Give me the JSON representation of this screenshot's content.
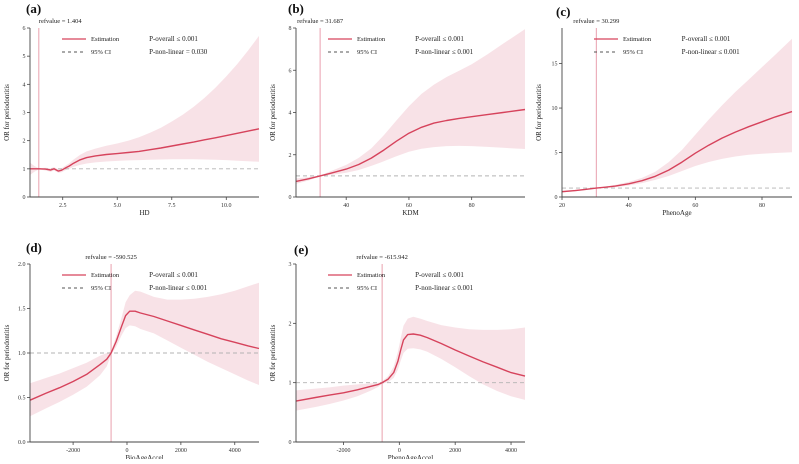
{
  "figure": {
    "background": "#ffffff",
    "colors": {
      "accent": "#d6435c",
      "band": "#f7dde3",
      "refline": "#e9a0ae",
      "dashline": "#b3b3b3",
      "axis": "#444444",
      "text": "#1a1a1a",
      "legend_dash": "#555555"
    },
    "legend": {
      "estimation_label": "Estimation",
      "ci_label": "95% CI"
    }
  },
  "chart_data": [
    {
      "type": "line",
      "panel_label": "(a)",
      "ref_label": "refvalue = 1.404",
      "refvalue": 1.404,
      "xlabel": "HD",
      "ylabel": "OR for periodontitis",
      "p_overall": "P-overall ≤ 0.001",
      "p_nonlinear": "P-non-linear = 0.030",
      "legend": [
        "Estimation",
        "95% CI"
      ],
      "legend_position": "top-left",
      "grid": false,
      "xlim": [
        1.0,
        11.5
      ],
      "ylim": [
        0,
        6
      ],
      "xticks": {
        "values": [
          2.5,
          5.0,
          7.5,
          10.0
        ],
        "labels": [
          "2.5",
          "5.0",
          "7.5",
          "10.0"
        ]
      },
      "yticks": {
        "values": [
          0,
          1,
          2,
          3,
          4,
          5,
          6
        ],
        "labels": [
          "0",
          "1",
          "2",
          "3",
          "4",
          "5",
          "6"
        ]
      },
      "x": [
        1.0,
        1.2,
        1.404,
        1.7,
        1.95,
        2.1,
        2.3,
        2.45,
        2.6,
        2.8,
        3.0,
        3.3,
        3.6,
        4.0,
        4.5,
        5.0,
        5.5,
        6.0,
        6.5,
        7.0,
        7.5,
        8.0,
        8.5,
        9.0,
        9.5,
        10.0,
        10.5,
        11.0,
        11.5
      ],
      "estimate": [
        1.0,
        1.0,
        1.0,
        0.99,
        0.96,
        1.0,
        0.92,
        0.95,
        1.02,
        1.1,
        1.2,
        1.32,
        1.4,
        1.46,
        1.51,
        1.54,
        1.58,
        1.62,
        1.68,
        1.74,
        1.81,
        1.88,
        1.95,
        2.03,
        2.1,
        2.18,
        2.26,
        2.34,
        2.42
      ],
      "ci_upper": [
        1.22,
        1.1,
        1.02,
        1.04,
        1.02,
        1.06,
        0.98,
        1.02,
        1.1,
        1.2,
        1.33,
        1.5,
        1.62,
        1.72,
        1.82,
        1.9,
        2.0,
        2.12,
        2.28,
        2.46,
        2.68,
        2.92,
        3.2,
        3.52,
        3.88,
        4.28,
        4.72,
        5.2,
        5.72
      ],
      "ci_lower": [
        0.78,
        0.9,
        0.98,
        0.94,
        0.9,
        0.94,
        0.86,
        0.88,
        0.94,
        1.0,
        1.07,
        1.14,
        1.19,
        1.23,
        1.26,
        1.28,
        1.3,
        1.31,
        1.32,
        1.33,
        1.34,
        1.34,
        1.34,
        1.33,
        1.32,
        1.31,
        1.29,
        1.27,
        1.25
      ]
    },
    {
      "type": "line",
      "panel_label": "(b)",
      "ref_label": "refvalue = 31.687",
      "refvalue": 31.687,
      "xlabel": "KDM",
      "ylabel": "OR for periodontitis",
      "p_overall": "P-overall ≤ 0.001",
      "p_nonlinear": "P-non-linear ≤ 0.001",
      "legend": [
        "Estimation",
        "95% CI"
      ],
      "legend_position": "top-left",
      "grid": false,
      "xlim": [
        24,
        97
      ],
      "ylim": [
        0,
        8
      ],
      "xticks": {
        "values": [
          40,
          60,
          80
        ],
        "labels": [
          "40",
          "60",
          "80"
        ]
      },
      "yticks": {
        "values": [
          0,
          2,
          4,
          6,
          8
        ],
        "labels": [
          "0",
          "2",
          "4",
          "6",
          "8"
        ]
      },
      "x": [
        24,
        28,
        31.687,
        35,
        40,
        44,
        48,
        52,
        56,
        60,
        64,
        68,
        72,
        76,
        80,
        85,
        90,
        97
      ],
      "estimate": [
        0.74,
        0.86,
        1.0,
        1.12,
        1.32,
        1.54,
        1.84,
        2.22,
        2.64,
        3.02,
        3.3,
        3.5,
        3.62,
        3.72,
        3.8,
        3.9,
        4.0,
        4.14
      ],
      "ci_upper": [
        0.88,
        0.94,
        1.02,
        1.22,
        1.52,
        1.85,
        2.3,
        2.92,
        3.62,
        4.3,
        4.88,
        5.32,
        5.68,
        5.98,
        6.28,
        6.75,
        7.25,
        7.95
      ],
      "ci_lower": [
        0.62,
        0.78,
        0.98,
        1.04,
        1.15,
        1.28,
        1.47,
        1.69,
        1.93,
        2.14,
        2.28,
        2.36,
        2.41,
        2.42,
        2.41,
        2.37,
        2.33,
        2.27
      ]
    },
    {
      "type": "line",
      "panel_label": "(c)",
      "ref_label": "refvalue = 30.299",
      "refvalue": 30.299,
      "xlabel": "PhenoAge",
      "ylabel": "OR for periodontitis",
      "p_overall": "P-overall ≤ 0.001",
      "p_nonlinear": "P-non-linear ≤ 0.001",
      "legend": [
        "Estimation",
        "95% CI"
      ],
      "legend_position": "top-left",
      "grid": false,
      "xlim": [
        20,
        89
      ],
      "ylim": [
        0,
        19
      ],
      "xticks": {
        "values": [
          20,
          40,
          60,
          80
        ],
        "labels": [
          "20",
          "40",
          "60",
          "80"
        ]
      },
      "yticks": {
        "values": [
          0,
          5,
          10,
          15
        ],
        "labels": [
          "0",
          "5",
          "10",
          "15"
        ]
      },
      "x": [
        20,
        24,
        27,
        30.299,
        33,
        36,
        40,
        44,
        48,
        52,
        56,
        60,
        64,
        68,
        72,
        76,
        80,
        84,
        89
      ],
      "estimate": [
        0.6,
        0.72,
        0.85,
        1.0,
        1.1,
        1.22,
        1.48,
        1.83,
        2.33,
        3.02,
        3.92,
        4.92,
        5.82,
        6.62,
        7.3,
        7.9,
        8.45,
        9.0,
        9.6
      ],
      "ci_upper": [
        0.72,
        0.8,
        0.9,
        1.03,
        1.17,
        1.36,
        1.7,
        2.15,
        2.85,
        3.92,
        5.3,
        7.0,
        8.7,
        10.3,
        11.8,
        13.2,
        14.6,
        16.0,
        17.8
      ],
      "ci_lower": [
        0.5,
        0.64,
        0.8,
        0.97,
        1.03,
        1.1,
        1.29,
        1.56,
        1.92,
        2.36,
        2.92,
        3.48,
        3.94,
        4.28,
        4.55,
        4.74,
        4.87,
        4.95,
        5.02
      ]
    },
    {
      "type": "line",
      "panel_label": "(d)",
      "ref_label": "refvalue = -590.525",
      "refvalue": -590.525,
      "xlabel": "BioAgeAccel",
      "ylabel": "OR for periodontitis",
      "p_overall": "P-overall ≤ 0.001",
      "p_nonlinear": "P-non-linear ≤ 0.001",
      "legend": [
        "Estimation",
        "95% CI"
      ],
      "legend_position": "top-left",
      "grid": false,
      "xlim": [
        -3600,
        4900
      ],
      "ylim": [
        0,
        2
      ],
      "xticks": {
        "values": [
          -2000,
          0,
          2000,
          4000
        ],
        "labels": [
          "-2000",
          "0",
          "2000",
          "4000"
        ]
      },
      "yticks": {
        "values": [
          0,
          0.5,
          1.0,
          1.5,
          2.0
        ],
        "labels": [
          "0.0",
          "0.5",
          "1.0",
          "1.5",
          "2.0"
        ]
      },
      "x": [
        -3600,
        -3000,
        -2500,
        -2000,
        -1500,
        -1000,
        -750,
        -590.525,
        -400,
        -200,
        -50,
        100,
        300,
        500,
        1000,
        1500,
        2000,
        2500,
        3000,
        3500,
        4000,
        4500,
        4900
      ],
      "estimate": [
        0.47,
        0.55,
        0.61,
        0.68,
        0.76,
        0.87,
        0.93,
        1.0,
        1.13,
        1.3,
        1.42,
        1.47,
        1.47,
        1.45,
        1.41,
        1.36,
        1.31,
        1.26,
        1.21,
        1.16,
        1.12,
        1.08,
        1.05
      ],
      "ci_upper": [
        0.66,
        0.72,
        0.77,
        0.83,
        0.89,
        0.97,
        1.0,
        1.02,
        1.19,
        1.4,
        1.57,
        1.65,
        1.7,
        1.69,
        1.63,
        1.6,
        1.6,
        1.61,
        1.63,
        1.66,
        1.7,
        1.75,
        1.79
      ],
      "ci_lower": [
        0.29,
        0.38,
        0.45,
        0.53,
        0.62,
        0.75,
        0.85,
        0.98,
        1.07,
        1.2,
        1.28,
        1.31,
        1.3,
        1.27,
        1.22,
        1.14,
        1.06,
        0.98,
        0.9,
        0.83,
        0.76,
        0.69,
        0.64
      ]
    },
    {
      "type": "line",
      "panel_label": "(e)",
      "ref_label": "refvalue = -615.942",
      "refvalue": -615.942,
      "xlabel": "PhenoAgeAccel",
      "ylabel": "OR for periodontitis",
      "p_overall": "P-overall ≤  0.001",
      "p_nonlinear": "P-non-linear ≤ 0.001",
      "legend": [
        "Estimation",
        "95% CI"
      ],
      "legend_position": "top-left",
      "grid": false,
      "xlim": [
        -3700,
        4500
      ],
      "ylim": [
        0,
        3
      ],
      "xticks": {
        "values": [
          -2000,
          0,
          2000,
          4000
        ],
        "labels": [
          "-2000",
          "0",
          "2000",
          "4000"
        ]
      },
      "yticks": {
        "values": [
          0,
          1,
          2,
          3
        ],
        "labels": [
          "0",
          "1",
          "2",
          "3"
        ]
      },
      "x": [
        -3700,
        -3000,
        -2500,
        -2000,
        -1500,
        -1000,
        -750,
        -615.942,
        -400,
        -200,
        -50,
        50,
        150,
        300,
        500,
        750,
        1000,
        1500,
        2000,
        2500,
        3000,
        3500,
        4000,
        4500
      ],
      "estimate": [
        0.69,
        0.75,
        0.79,
        0.83,
        0.88,
        0.94,
        0.97,
        1.0,
        1.06,
        1.17,
        1.36,
        1.55,
        1.72,
        1.81,
        1.82,
        1.8,
        1.76,
        1.66,
        1.55,
        1.45,
        1.35,
        1.26,
        1.17,
        1.11
      ],
      "ci_upper": [
        0.87,
        0.9,
        0.92,
        0.95,
        0.97,
        0.99,
        1.0,
        1.02,
        1.11,
        1.27,
        1.52,
        1.75,
        1.96,
        2.08,
        2.11,
        2.08,
        2.04,
        1.97,
        1.93,
        1.9,
        1.89,
        1.89,
        1.9,
        1.93
      ],
      "ci_lower": [
        0.53,
        0.59,
        0.64,
        0.7,
        0.77,
        0.87,
        0.93,
        0.98,
        1.01,
        1.08,
        1.22,
        1.37,
        1.5,
        1.57,
        1.58,
        1.56,
        1.52,
        1.4,
        1.26,
        1.11,
        0.97,
        0.86,
        0.77,
        0.71
      ]
    }
  ]
}
